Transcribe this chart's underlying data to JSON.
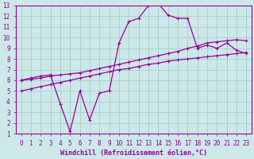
{
  "title": "",
  "xlabel": "Windchill (Refroidissement éolien,°C)",
  "ylabel": "",
  "bg_color": "#cce8e8",
  "line_color": "#990099",
  "grid_color": "#aacccc",
  "xlim": [
    -0.5,
    23.5
  ],
  "ylim": [
    1,
    13
  ],
  "xticks": [
    0,
    1,
    2,
    3,
    4,
    5,
    6,
    7,
    8,
    9,
    10,
    11,
    12,
    13,
    14,
    15,
    16,
    17,
    18,
    19,
    20,
    21,
    22,
    23
  ],
  "yticks": [
    1,
    2,
    3,
    4,
    5,
    6,
    7,
    8,
    9,
    10,
    11,
    12,
    13
  ],
  "line1_x": [
    0,
    1,
    2,
    3,
    4,
    5,
    6,
    7,
    8,
    9,
    10,
    11,
    12,
    13,
    14,
    15,
    16,
    17,
    18,
    19,
    20,
    21,
    22,
    23
  ],
  "line1_y": [
    6.0,
    6.2,
    6.4,
    6.5,
    3.8,
    1.2,
    5.0,
    2.3,
    4.8,
    5.0,
    9.5,
    11.5,
    11.8,
    13.0,
    13.2,
    12.1,
    11.8,
    11.8,
    9.0,
    9.3,
    9.0,
    9.5,
    8.8,
    8.5
  ],
  "line2_x": [
    0,
    1,
    2,
    3,
    4,
    5,
    6,
    7,
    8,
    9,
    10,
    11,
    12,
    13,
    14,
    15,
    16,
    17,
    18,
    19,
    20,
    21,
    22,
    23
  ],
  "line2_y": [
    6.0,
    6.1,
    6.2,
    6.4,
    6.5,
    6.6,
    6.7,
    6.9,
    7.1,
    7.3,
    7.5,
    7.7,
    7.9,
    8.1,
    8.3,
    8.5,
    8.7,
    9.0,
    9.2,
    9.5,
    9.6,
    9.7,
    9.8,
    9.7
  ],
  "line3_x": [
    0,
    1,
    2,
    3,
    4,
    5,
    6,
    7,
    8,
    9,
    10,
    11,
    12,
    13,
    14,
    15,
    16,
    17,
    18,
    19,
    20,
    21,
    22,
    23
  ],
  "line3_y": [
    5.0,
    5.2,
    5.4,
    5.6,
    5.8,
    6.0,
    6.2,
    6.4,
    6.6,
    6.8,
    7.0,
    7.1,
    7.3,
    7.5,
    7.6,
    7.8,
    7.9,
    8.0,
    8.1,
    8.2,
    8.3,
    8.4,
    8.5,
    8.6
  ],
  "tick_fontsize": 5.5,
  "label_fontsize": 6.0
}
